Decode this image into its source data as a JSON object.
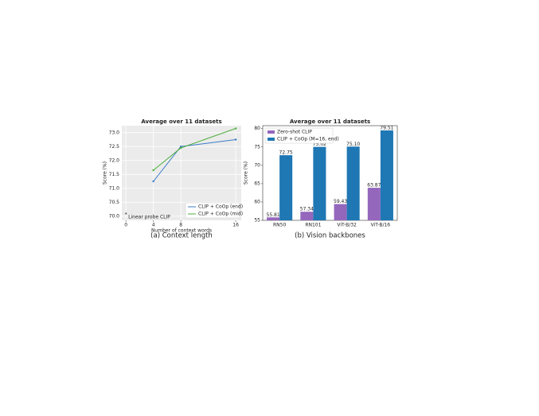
{
  "chart_data": [
    {
      "type": "line",
      "title": "Average over 11 datasets",
      "caption": "(a) Context length",
      "x_label": "Number of context words",
      "y_label": "Score (%)",
      "x": [
        4,
        8,
        16
      ],
      "series": [
        {
          "name": "CLIP + CoOp (end)",
          "color": "#3a7bc8",
          "values": [
            71.25,
            72.5,
            72.75
          ]
        },
        {
          "name": "CLIP + CoOp (mid)",
          "color": "#4cae3c",
          "values": [
            71.65,
            72.45,
            73.15
          ]
        }
      ],
      "annotation": {
        "text": "Linear probe CLIP",
        "x": 0,
        "y": 70.0,
        "color": "#9467bd"
      },
      "xlim": [
        -0.6,
        16.8
      ],
      "ylim": [
        69.85,
        73.25
      ],
      "xticks": [
        0,
        4,
        8,
        16
      ],
      "yticks": [
        {
          "value": 70,
          "label": "70.0"
        },
        70.5,
        {
          "value": 71,
          "label": "71.0"
        },
        71.5,
        {
          "value": 72,
          "label": "72.0"
        },
        72.5,
        {
          "value": 73,
          "label": "73.0"
        }
      ],
      "grid": true,
      "legend": "lower right"
    },
    {
      "type": "bar",
      "title": "Average over 11 datasets",
      "caption": "(b) Vision backbones",
      "y_label": "Score (%)",
      "categories": [
        "RN50",
        "RN101",
        "ViT-B/32",
        "ViT-B/16"
      ],
      "series": [
        {
          "name": "Zero-shot CLIP",
          "color": "#9467bd",
          "values": [
            55.81,
            57.34,
            59.43,
            63.87
          ]
        },
        {
          "name": "CLIP + CoOp (M=16, end)",
          "color": "#1f77b4",
          "values": [
            72.75,
            75.02,
            75.1,
            79.51
          ],
          "value_labels": [
            "72.75",
            "75.02",
            "75.10",
            "79.51"
          ]
        }
      ],
      "ylim": [
        55,
        80.8
      ],
      "yticks": [
        55,
        60,
        65,
        70,
        75,
        80
      ],
      "legend": "upper left"
    }
  ]
}
